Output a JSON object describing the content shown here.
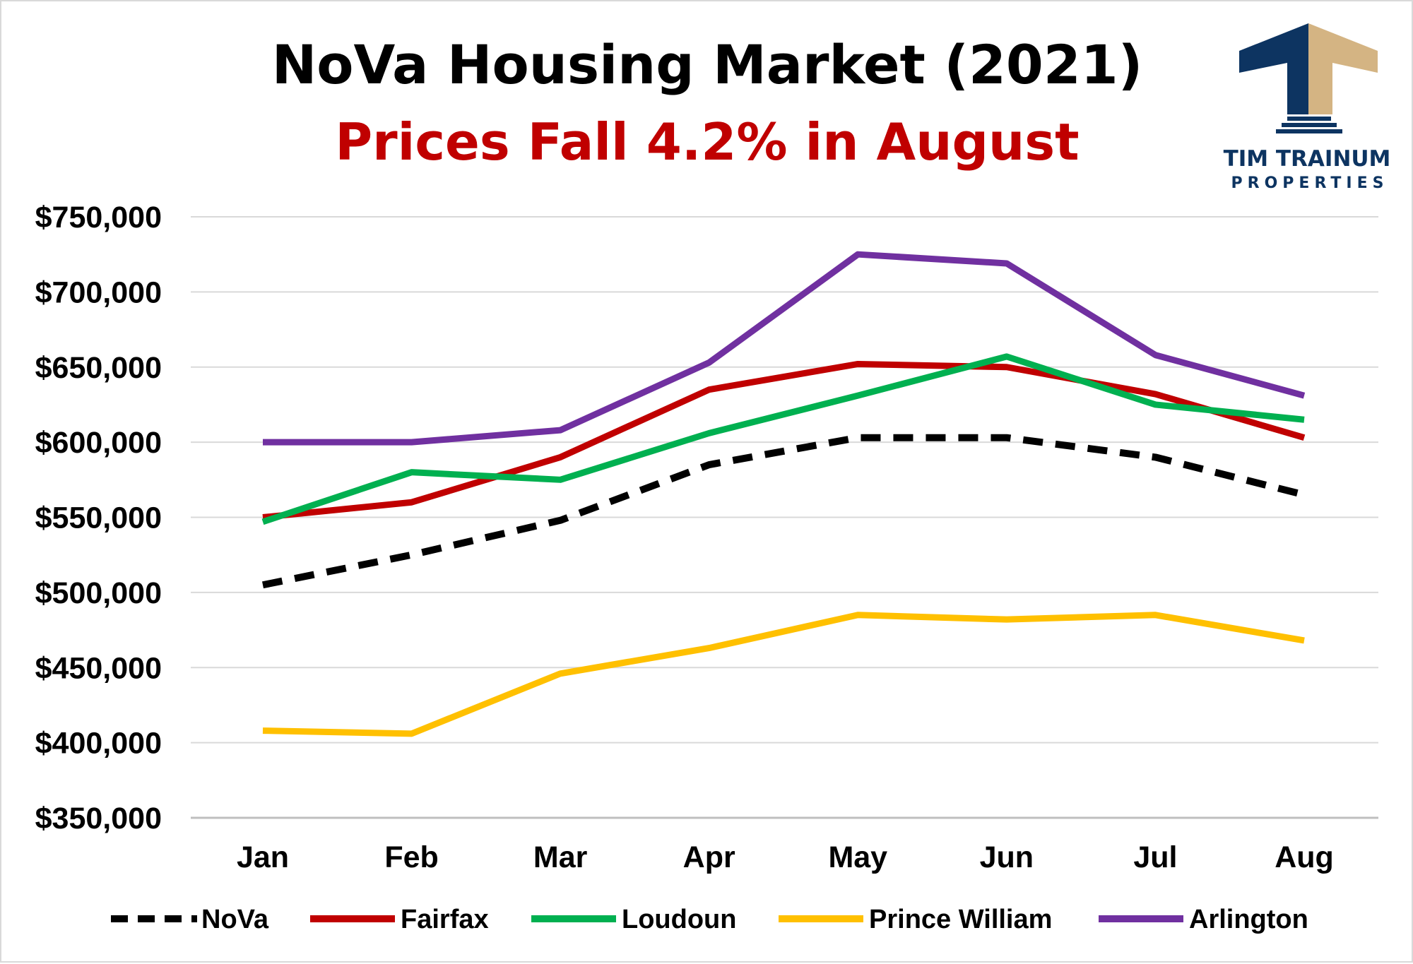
{
  "chart_data": {
    "type": "line",
    "title": "NoVa Housing Market (2021)",
    "subtitle": "Prices Fall 4.2% in August",
    "xlabel": "",
    "ylabel": "",
    "categories": [
      "Jan",
      "Feb",
      "Mar",
      "Apr",
      "May",
      "Jun",
      "Jul",
      "Aug"
    ],
    "ylim": [
      350000,
      750000
    ],
    "yticks": [
      350000,
      400000,
      450000,
      500000,
      550000,
      600000,
      650000,
      700000,
      750000
    ],
    "ytick_labels": [
      "$350,000",
      "$400,000",
      "$450,000",
      "$500,000",
      "$550,000",
      "$600,000",
      "$650,000",
      "$700,000",
      "$750,000"
    ],
    "grid": true,
    "legend_position": "bottom",
    "series": [
      {
        "name": "NoVa",
        "color": "#000000",
        "dashed": true,
        "values": [
          505000,
          525000,
          548000,
          585000,
          603000,
          603000,
          590000,
          565000
        ]
      },
      {
        "name": "Fairfax",
        "color": "#c00000",
        "dashed": false,
        "values": [
          550000,
          560000,
          590000,
          635000,
          652000,
          650000,
          632000,
          603000
        ]
      },
      {
        "name": "Loudoun",
        "color": "#00b050",
        "dashed": false,
        "values": [
          547000,
          580000,
          575000,
          606000,
          631000,
          657000,
          625000,
          615000
        ]
      },
      {
        "name": "Prince William",
        "color": "#ffc000",
        "dashed": false,
        "values": [
          408000,
          406000,
          446000,
          463000,
          485000,
          482000,
          485000,
          468000
        ]
      },
      {
        "name": "Arlington",
        "color": "#7030a0",
        "dashed": false,
        "values": [
          600000,
          600000,
          608000,
          653000,
          725000,
          719000,
          658000,
          631000
        ]
      }
    ]
  },
  "logo": {
    "line1": "TIM TRAINUM",
    "line2": "PROPERTIES",
    "navy": "#0d3461",
    "gold": "#d4b483"
  }
}
